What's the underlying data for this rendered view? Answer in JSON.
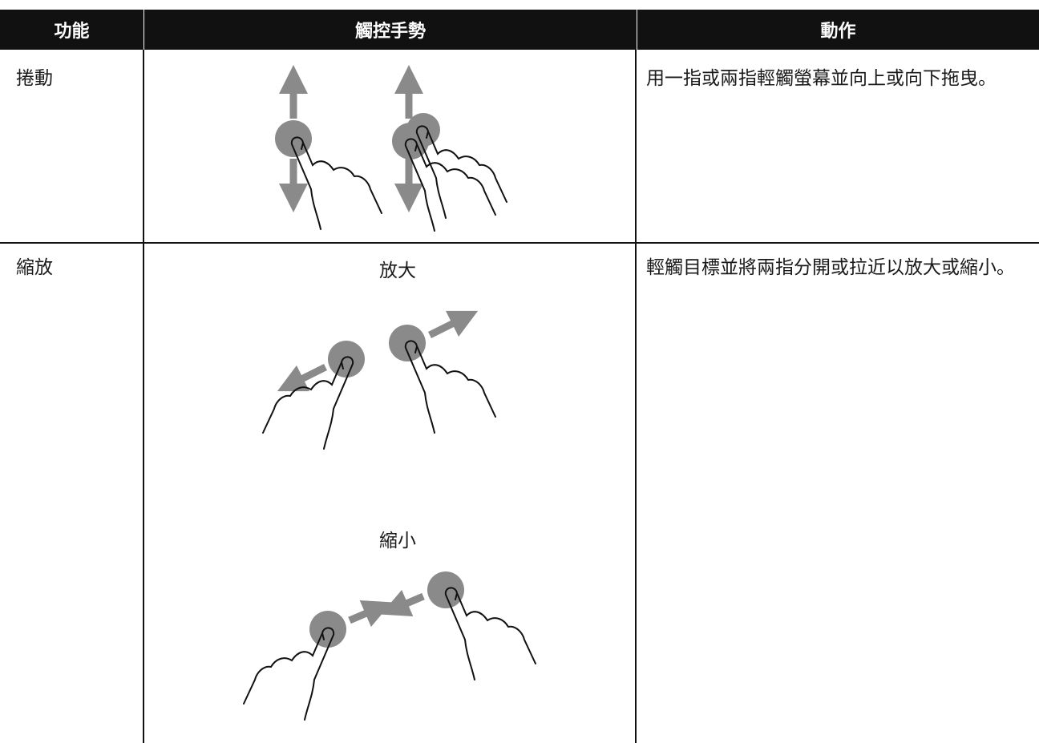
{
  "header": {
    "columns": [
      "功能",
      "觸控手勢",
      "動作"
    ]
  },
  "rows": [
    {
      "function": "捲動",
      "action": "用一指或兩指輕觸螢幕並向上或向下拖曳。"
    },
    {
      "function": "縮放",
      "gesture_labels": [
        "放大",
        "縮小"
      ],
      "action": "輕觸目標並將兩指分開或拉近以放大或縮小。"
    }
  ]
}
